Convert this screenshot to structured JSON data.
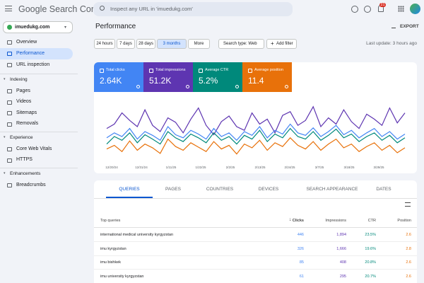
{
  "header": {
    "product": "Google Search Console",
    "search_placeholder": "Inspect any URL in 'imuedukg.com'",
    "notification_count": "21"
  },
  "sidebar": {
    "property": "imuedukg.com",
    "top_items": [
      "Overview",
      "Performance",
      "URL inspection"
    ],
    "sections": [
      {
        "title": "Indexing",
        "items": [
          "Pages",
          "Videos",
          "Sitemaps",
          "Removals"
        ]
      },
      {
        "title": "Experience",
        "items": [
          "Core Web Vitals",
          "HTTPS"
        ]
      },
      {
        "title": "Enhancements",
        "items": [
          "Breadcrumbs"
        ]
      }
    ]
  },
  "page": {
    "title": "Performance",
    "export": "EXPORT",
    "date_filters": [
      "24 hours",
      "7 days",
      "28 days",
      "3 months",
      "More"
    ],
    "search_type": "Search type: Web",
    "add_filter": "Add filter",
    "last_update": "Last update: 3 hours ago"
  },
  "cards": [
    {
      "value": "2.64K"
    },
    {
      "value": "51.2K"
    },
    {
      "value": "5.2%"
    },
    {
      "value": "11.4"
    }
  ],
  "chart": {
    "type": "line",
    "ylim": [
      0,
      100
    ],
    "x_labels": [
      "12/20/24",
      "12/31/24",
      "1/11/25",
      "1/22/25",
      "2/2/25",
      "2/13/25",
      "2/24/25",
      "3/7/25",
      "3/18/25",
      "3/29/25"
    ],
    "series": [
      {
        "name": "Total clicks",
        "color": "#4285f4",
        "values": [
          40,
          48,
          42,
          55,
          38,
          50,
          44,
          36,
          58,
          45,
          40,
          52,
          46,
          38,
          55,
          42,
          48,
          36,
          50,
          44,
          58,
          40,
          52,
          46,
          62,
          48,
          44,
          56,
          42,
          50,
          60,
          45,
          52,
          40,
          48,
          55,
          42,
          50,
          38,
          46
        ]
      },
      {
        "name": "Total impressions",
        "color": "#5e35b1",
        "values": [
          55,
          62,
          80,
          68,
          58,
          85,
          60,
          50,
          72,
          65,
          48,
          70,
          88,
          60,
          45,
          66,
          75,
          58,
          52,
          80,
          62,
          70,
          48,
          76,
          82,
          60,
          68,
          90,
          58,
          72,
          62,
          85,
          66,
          55,
          78,
          70,
          60,
          88,
          64,
          80
        ]
      },
      {
        "name": "Average CTR",
        "color": "#00897b",
        "values": [
          30,
          42,
          36,
          48,
          32,
          45,
          38,
          30,
          50,
          40,
          34,
          46,
          40,
          32,
          48,
          36,
          42,
          30,
          44,
          38,
          52,
          34,
          46,
          40,
          55,
          42,
          38,
          50,
          36,
          44,
          54,
          40,
          46,
          34,
          42,
          48,
          36,
          44,
          32,
          40
        ]
      },
      {
        "name": "Average position",
        "color": "#e8710a",
        "values": [
          22,
          28,
          18,
          35,
          20,
          30,
          24,
          15,
          38,
          26,
          20,
          32,
          25,
          18,
          34,
          22,
          28,
          14,
          30,
          24,
          36,
          20,
          32,
          26,
          40,
          28,
          22,
          34,
          20,
          30,
          38,
          24,
          30,
          18,
          26,
          32,
          20,
          28,
          16,
          24
        ]
      }
    ]
  },
  "tabs": [
    "QUERIES",
    "PAGES",
    "COUNTRIES",
    "DEVICES",
    "SEARCH APPEARANCE",
    "DATES"
  ],
  "table": {
    "columns": [
      "Top queries",
      "Clicks",
      "Impressions",
      "CTR",
      "Position"
    ],
    "rows": [
      [
        "international medical university kyrgyzstan",
        "446",
        "1,894",
        "23.5%",
        "2.6"
      ],
      [
        "imu kyrgyzstan",
        "326",
        "1,666",
        "19.6%",
        "2.8"
      ],
      [
        "imu bishkek",
        "85",
        "408",
        "20.8%",
        "2.6"
      ],
      [
        "imu university kyrgyzstan",
        "61",
        "295",
        "20.7%",
        "2.6"
      ]
    ]
  }
}
